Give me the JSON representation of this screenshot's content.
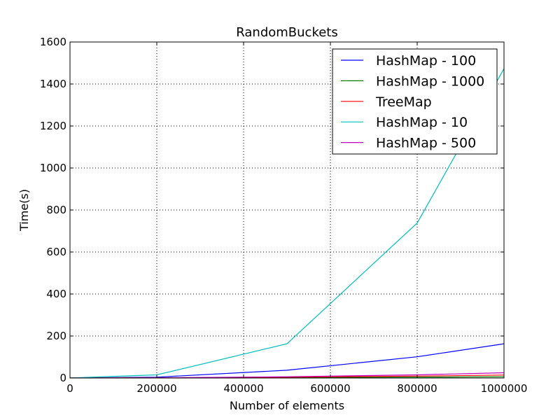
{
  "chart_data": {
    "type": "line",
    "title": "RandomBuckets",
    "xlabel": "Number of elements",
    "ylabel": "Time(s)",
    "xlim": [
      0,
      1000000
    ],
    "ylim": [
      0,
      1600
    ],
    "xticks": [
      0,
      200000,
      400000,
      600000,
      800000,
      1000000
    ],
    "xtick_labels": [
      "0",
      "200000",
      "400000",
      "600000",
      "800000",
      "1000000"
    ],
    "yticks": [
      0,
      200,
      400,
      600,
      800,
      1000,
      1200,
      1400,
      1600
    ],
    "ytick_labels": [
      "0",
      "200",
      "400",
      "600",
      "800",
      "1000",
      "1200",
      "1400",
      "1600"
    ],
    "grid": true,
    "legend_position": "top-right",
    "x": [
      0,
      200000,
      500000,
      800000,
      1000000
    ],
    "series": [
      {
        "name": "HashMap - 100",
        "color": "#0000ff",
        "values": [
          0,
          4,
          37,
          101,
          163
        ]
      },
      {
        "name": "HashMap - 1000",
        "color": "#008000",
        "values": [
          0,
          0.5,
          2,
          4,
          6
        ]
      },
      {
        "name": "TreeMap",
        "color": "#ff0000",
        "values": [
          0,
          1,
          4,
          9,
          14
        ]
      },
      {
        "name": "HashMap - 10",
        "color": "#00bfbf",
        "values": [
          0,
          15,
          163,
          738,
          1473
        ]
      },
      {
        "name": "HashMap - 500",
        "color": "#bf00bf",
        "values": [
          0,
          1,
          6,
          15,
          25
        ]
      }
    ]
  }
}
